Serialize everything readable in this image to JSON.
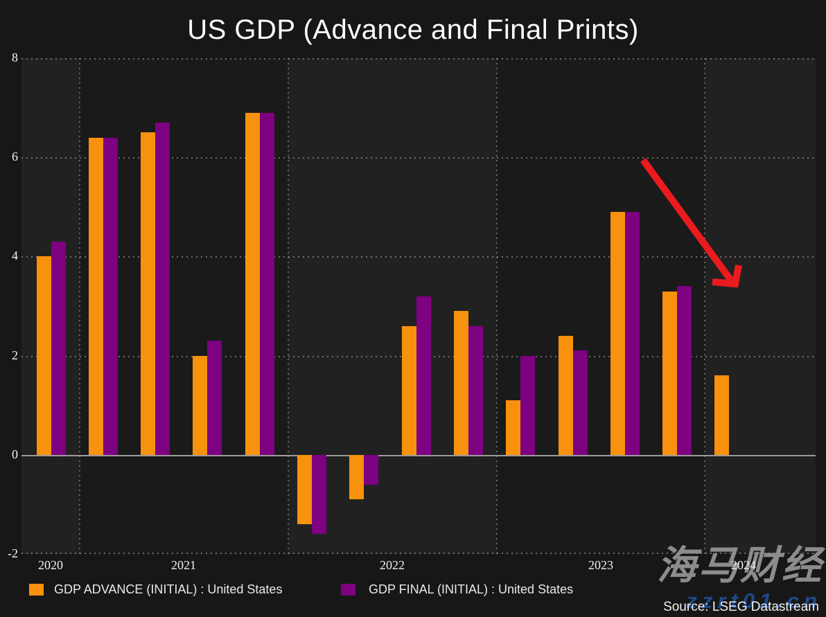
{
  "page": {
    "title": "US GDP (Advance and Final Prints)"
  },
  "chart_data": {
    "type": "bar",
    "title": "US GDP (Advance and Final Prints)",
    "categories": [
      "2020 Q4",
      "2021 Q1",
      "2021 Q2",
      "2021 Q3",
      "2021 Q4",
      "2022 Q1",
      "2022 Q2",
      "2022 Q3",
      "2022 Q4",
      "2023 Q1",
      "2023 Q2",
      "2023 Q3",
      "2023 Q4",
      "2024 Q1"
    ],
    "series": [
      {
        "name": "GDP ADVANCE (INITIAL) : United States",
        "color": "#F8910B",
        "values": [
          4.0,
          6.4,
          6.5,
          2.0,
          6.9,
          -1.4,
          -0.9,
          2.6,
          2.9,
          1.1,
          2.4,
          4.9,
          3.3,
          1.6
        ]
      },
      {
        "name": "GDP FINAL (INITIAL) : United States",
        "color": "#7D0180",
        "values": [
          4.3,
          6.4,
          6.7,
          2.3,
          6.9,
          -1.6,
          -0.6,
          3.2,
          2.6,
          2.0,
          2.1,
          4.9,
          3.4,
          null
        ]
      }
    ],
    "ylim": [
      -2,
      8
    ],
    "yticks": [
      8,
      6,
      4,
      2,
      0,
      -2
    ],
    "year_labels": [
      "2020",
      "2021",
      "2022",
      "2023",
      "2024"
    ],
    "grid": "dotted",
    "legend_position": "bottom",
    "background_bands": {
      "light": "#212121",
      "dark": "#1a1a1a"
    },
    "annotation": {
      "type": "arrow",
      "direction": "down-right",
      "color": "#EA1B1E"
    }
  },
  "source": {
    "text": "Source: LSEG Datastream"
  },
  "watermark": {
    "brand": "海马财经",
    "url": "zzrt01.cn"
  }
}
